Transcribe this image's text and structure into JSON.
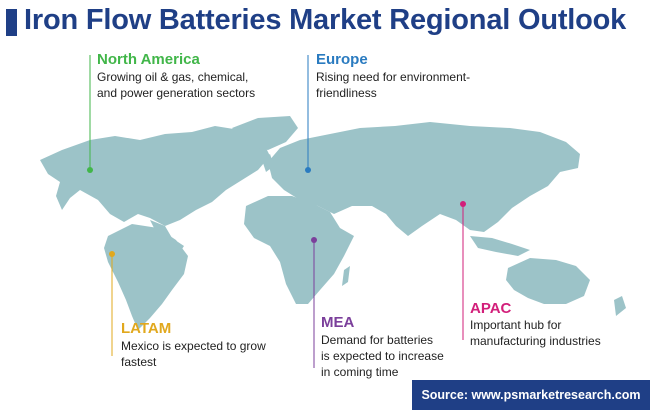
{
  "title": "Iron Flow Batteries Market Regional Outlook",
  "colors": {
    "title": "#1f3f86",
    "map_land": "#9cc3c8",
    "north_america": "#41b649",
    "europe": "#2a7bc0",
    "apac": "#d21f7a",
    "latam": "#e1a81d",
    "mea": "#7b3f9b"
  },
  "regions": {
    "north_america": {
      "name": "North America",
      "description_lines": [
        "Growing oil & gas, chemical,",
        "and power generation sectors"
      ]
    },
    "europe": {
      "name": "Europe",
      "description_lines": [
        "Rising need for environment-",
        "friendliness"
      ]
    },
    "latam": {
      "name": "LATAM",
      "description_lines": [
        "Mexico is expected to grow",
        "fastest"
      ]
    },
    "mea": {
      "name": "MEA",
      "description_lines": [
        "Demand for batteries",
        "is expected to increase",
        "in coming time"
      ]
    },
    "apac": {
      "name": "APAC",
      "description_lines": [
        "Important hub for",
        "manufacturing industries"
      ]
    }
  },
  "source": "Source: www.psmarketresearch.com"
}
